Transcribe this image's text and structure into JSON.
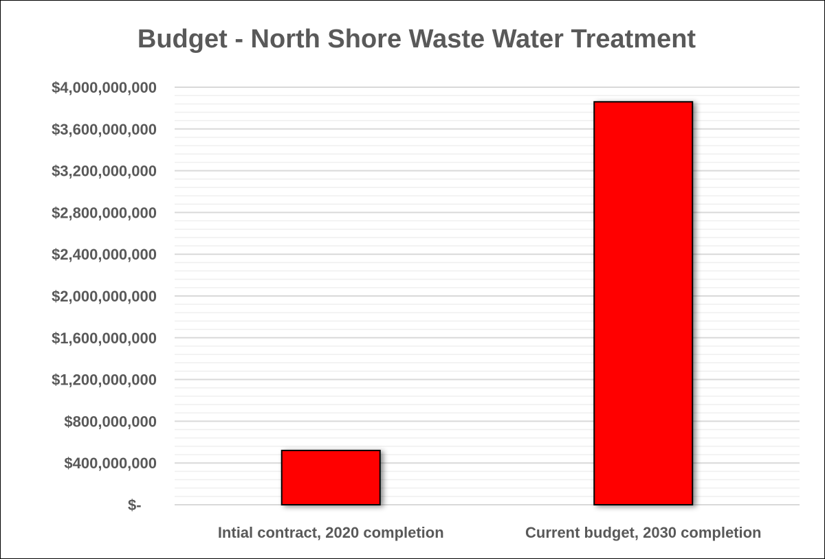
{
  "chart_data": {
    "type": "bar",
    "title": "Budget - North Shore Waste Water Treatment",
    "categories": [
      "Intial contract, 2020 completion",
      "Current budget, 2030 completion"
    ],
    "values": [
      520000000,
      3860000000
    ],
    "xlabel": "",
    "ylabel": "",
    "ylim": [
      0,
      4000000000
    ],
    "yticks": [
      0,
      400000000,
      800000000,
      1200000000,
      1600000000,
      2000000000,
      2400000000,
      2800000000,
      3200000000,
      3600000000,
      4000000000
    ],
    "ytick_labels": [
      "$-",
      "$400,000,000",
      "$800,000,000",
      "$1,200,000,000",
      "$1,600,000,000",
      "$2,000,000,000",
      "$2,400,000,000",
      "$2,800,000,000",
      "$3,200,000,000",
      "$3,600,000,000",
      "$4,000,000,000"
    ],
    "minor_step": 80000000,
    "grid": true,
    "legend": "none",
    "bar_color": "#FF0000",
    "bar_edge_color": "#000000"
  }
}
